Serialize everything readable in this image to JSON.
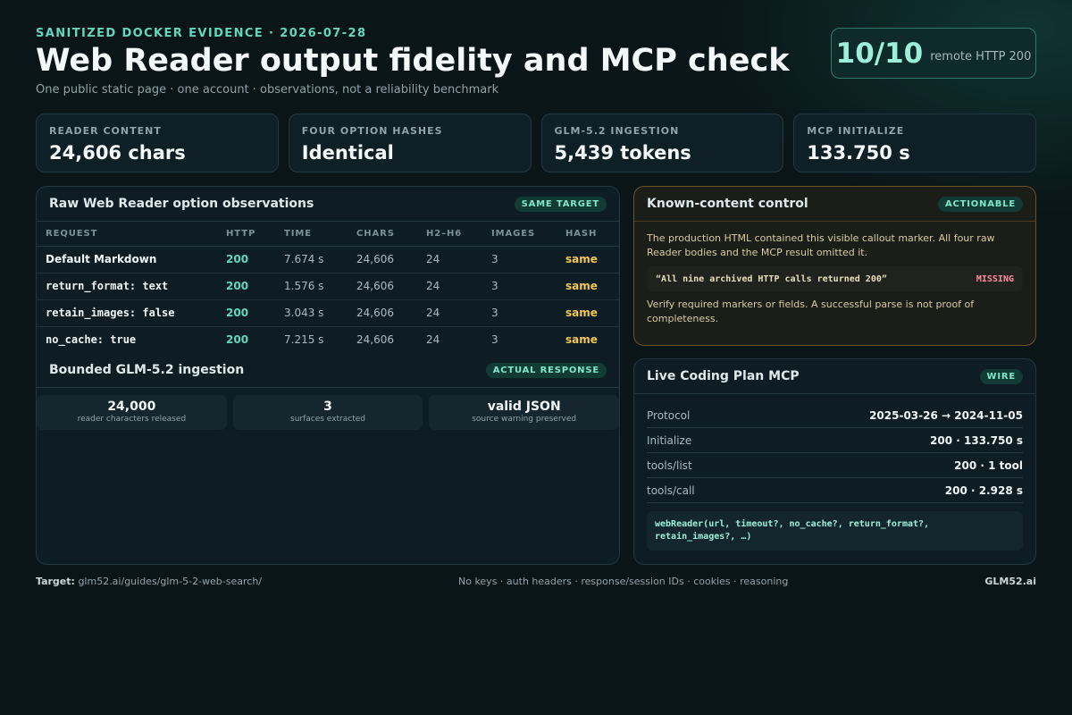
{
  "header": {
    "eyebrow": "SANITIZED DOCKER EVIDENCE · 2026-07-28",
    "title": "Web Reader output fidelity and MCP check",
    "subtitle": "One public static page · one account · observations, not a reliability benchmark"
  },
  "score": {
    "value": "10/10",
    "label": "remote HTTP 200"
  },
  "stats": [
    {
      "label": "READER CONTENT",
      "value": "24,606 chars"
    },
    {
      "label": "FOUR OPTION HASHES",
      "value": "Identical"
    },
    {
      "label": "GLM-5.2 INGESTION",
      "value": "5,439 tokens"
    },
    {
      "label": "MCP INITIALIZE",
      "value": "133.750 s"
    }
  ],
  "raw_panel": {
    "title": "Raw Web Reader option observations",
    "badge": "SAME TARGET",
    "columns": [
      "REQUEST",
      "HTTP",
      "TIME",
      "CHARS",
      "H2–H6",
      "IMAGES",
      "HASH"
    ],
    "rows": [
      {
        "request": "Default Markdown",
        "http": "200",
        "time": "7.674 s",
        "chars": "24,606",
        "headings": "24",
        "images": "3",
        "hash": "same"
      },
      {
        "request": "return_format: text",
        "http": "200",
        "time": "1.576 s",
        "chars": "24,606",
        "headings": "24",
        "images": "3",
        "hash": "same"
      },
      {
        "request": "retain_images: false",
        "http": "200",
        "time": "3.043 s",
        "chars": "24,606",
        "headings": "24",
        "images": "3",
        "hash": "same"
      },
      {
        "request": "no_cache: true",
        "http": "200",
        "time": "7.215 s",
        "chars": "24,606",
        "headings": "24",
        "images": "3",
        "hash": "same"
      }
    ]
  },
  "ingestion_panel": {
    "title": "Bounded GLM-5.2 ingestion",
    "badge": "ACTUAL RESPONSE",
    "chips": [
      {
        "value": "24,000",
        "label": "reader characters released"
      },
      {
        "value": "3",
        "label": "surfaces extracted"
      },
      {
        "value": "valid JSON",
        "label": "source warning preserved"
      }
    ]
  },
  "known_panel": {
    "title": "Known-content control",
    "badge": "ACTIONABLE",
    "text1": "The production HTML contained this visible callout marker. All four raw Reader bodies and the MCP result omitted it.",
    "quote": "“All nine archived HTTP calls returned 200”",
    "quote_status": "MISSING",
    "text2": "Verify required markers or fields. A successful parse is not proof of completeness."
  },
  "mcp_panel": {
    "title": "Live Coding Plan MCP",
    "badge": "WIRE",
    "rows": [
      {
        "key": "Protocol",
        "value": "2025-03-26 → 2024-11-05"
      },
      {
        "key": "Initialize",
        "value": "200 · 133.750 s"
      },
      {
        "key": "tools/list",
        "value": "200 · 1 tool"
      },
      {
        "key": "tools/call",
        "value": "200 · 2.928 s"
      }
    ],
    "signature": "webReader(url, timeout?, no_cache?, return_format?, retain_images?, …)"
  },
  "footer": {
    "target_label": "Target:",
    "target_value": "glm52.ai/guides/glm-5-2-web-search/",
    "note": "No keys · auth headers · response/session IDs · cookies · reasoning",
    "brand": "GLM52.ai"
  }
}
